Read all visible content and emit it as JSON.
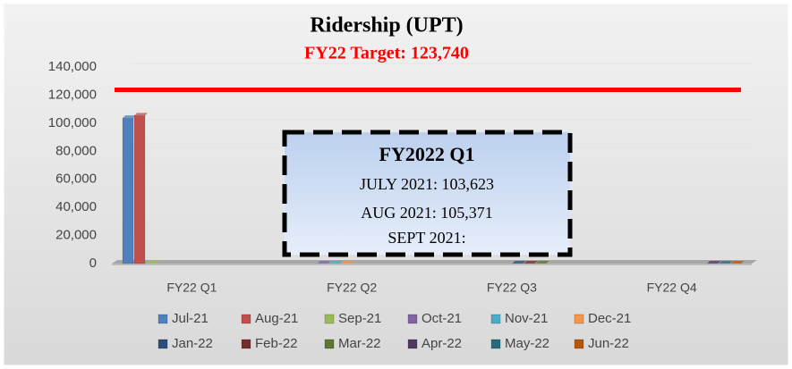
{
  "chart_data": {
    "type": "bar",
    "title": "Ridership (UPT)",
    "target": {
      "value": 123740,
      "label": "FY22 Target: 123,740",
      "color": "#ff0000"
    },
    "categories": [
      "FY22 Q1",
      "FY22 Q2",
      "FY22 Q3",
      "FY22 Q4"
    ],
    "series": [
      {
        "name": "Jul-21",
        "color": "#4f81bd",
        "values": [
          103623,
          null,
          null,
          null
        ]
      },
      {
        "name": "Aug-21",
        "color": "#c0504d",
        "values": [
          105371,
          null,
          null,
          null
        ]
      },
      {
        "name": "Sep-21",
        "color": "#9bbb59",
        "values": [
          0,
          null,
          null,
          null
        ]
      },
      {
        "name": "Oct-21",
        "color": "#8064a2",
        "values": [
          null,
          0,
          null,
          null
        ]
      },
      {
        "name": "Nov-21",
        "color": "#4bacc6",
        "values": [
          null,
          0,
          null,
          null
        ]
      },
      {
        "name": "Dec-21",
        "color": "#f79646",
        "values": [
          null,
          0,
          null,
          null
        ]
      },
      {
        "name": "Jan-22",
        "color": "#2c4d75",
        "values": [
          null,
          null,
          0,
          null
        ]
      },
      {
        "name": "Feb-22",
        "color": "#772c2a",
        "values": [
          null,
          null,
          0,
          null
        ]
      },
      {
        "name": "Mar-22",
        "color": "#5f7530",
        "values": [
          null,
          null,
          0,
          null
        ]
      },
      {
        "name": "Apr-22",
        "color": "#4d3b62",
        "values": [
          null,
          null,
          null,
          0
        ]
      },
      {
        "name": "May-22",
        "color": "#276a7c",
        "values": [
          null,
          null,
          null,
          0
        ]
      },
      {
        "name": "Jun-22",
        "color": "#b65708",
        "values": [
          null,
          null,
          null,
          0
        ]
      }
    ],
    "ylim": [
      0,
      140000
    ],
    "yticks": [
      0,
      {
        "value": 20000,
        "label": "20,000"
      },
      {
        "value": 40000,
        "label": "40,000"
      },
      {
        "value": 60000,
        "label": "60,000"
      },
      {
        "value": 80000,
        "label": "80,000"
      },
      {
        "value": 100000,
        "label": "100,000"
      },
      {
        "value": 120000,
        "label": "120,000"
      },
      {
        "value": 140000,
        "label": "140,000"
      }
    ],
    "grid": true,
    "legend": "bottom",
    "annotation": [
      "FY2022 Q1",
      "JULY 2021: 103,623",
      "AUG 2021: 105,371",
      "SEPT 2021:"
    ]
  }
}
